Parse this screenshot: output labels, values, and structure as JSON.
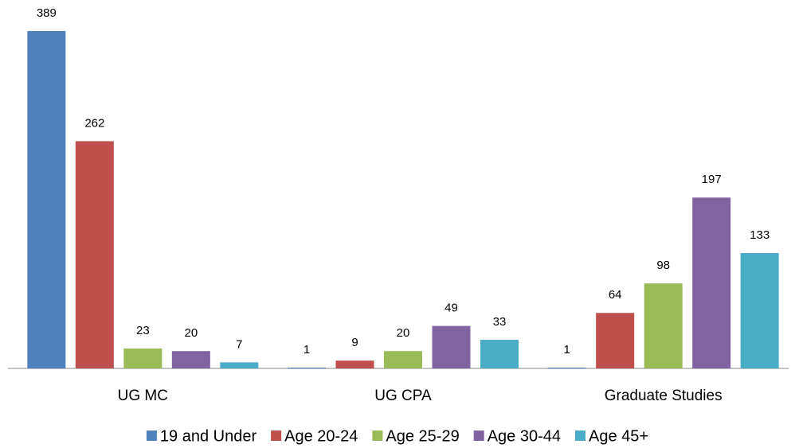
{
  "chart_data": {
    "type": "bar",
    "categories": [
      "UG MC",
      "UG CPA",
      "Graduate Studies"
    ],
    "series": [
      {
        "name": "19 and Under",
        "color": "#4f81bd",
        "values": [
          389,
          1,
          1
        ]
      },
      {
        "name": "Age 20-24",
        "color": "#c0504d",
        "values": [
          262,
          9,
          64
        ]
      },
      {
        "name": "Age 25-29",
        "color": "#9bbb59",
        "values": [
          23,
          20,
          98
        ]
      },
      {
        "name": "Age 30-44",
        "color": "#8064a2",
        "values": [
          20,
          49,
          197
        ]
      },
      {
        "name": "Age 45+",
        "color": "#4bacc6",
        "values": [
          7,
          33,
          133
        ]
      }
    ],
    "ylim": [
      0,
      389
    ],
    "legend": "bottom"
  }
}
